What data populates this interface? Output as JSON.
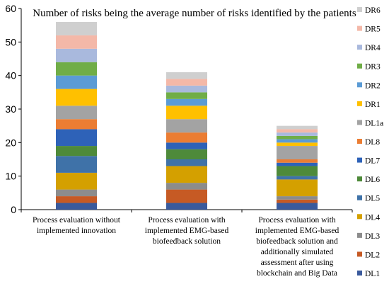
{
  "chart_data": {
    "type": "bar",
    "stacked": true,
    "title": "Number of risks being the average number of risks identified by the patients",
    "xlabel": "",
    "ylabel": "",
    "ylim": [
      0,
      60
    ],
    "yticks": [
      0,
      10,
      20,
      30,
      40,
      50,
      60
    ],
    "grid": false,
    "legend_position": "right",
    "categories": [
      [
        "Process evaluation without",
        "implemented innovation"
      ],
      [
        "Process evaluation with",
        "implemented EMG-based",
        "biofeedback solution"
      ],
      [
        "Process evaluation with",
        "implemented EMG-based",
        "biofeedback solution and",
        "additionally simulated",
        "assessment after using",
        "blockchain and Big Data"
      ]
    ],
    "series": [
      {
        "name": "DL1",
        "color": "#3a5a9c",
        "values": [
          2,
          2,
          2
        ]
      },
      {
        "name": "DL2",
        "color": "#c65a24",
        "values": [
          2,
          4,
          1
        ]
      },
      {
        "name": "DL3",
        "color": "#8c8c8c",
        "values": [
          2,
          2,
          1
        ]
      },
      {
        "name": "DL4",
        "color": "#d4a000",
        "values": [
          5,
          5,
          5
        ]
      },
      {
        "name": "DL5",
        "color": "#3f72a8",
        "values": [
          5,
          2,
          1
        ]
      },
      {
        "name": "DL6",
        "color": "#4e8a3a",
        "values": [
          3,
          3,
          3
        ]
      },
      {
        "name": "DL7",
        "color": "#2e62b8",
        "values": [
          5,
          2,
          1
        ]
      },
      {
        "name": "DL8",
        "color": "#eb7d33",
        "values": [
          3,
          3,
          1
        ]
      },
      {
        "name": "DL1a",
        "color": "#a3a3a3",
        "values": [
          4,
          4,
          4
        ]
      },
      {
        "name": "DR1",
        "color": "#ffc000",
        "values": [
          5,
          4,
          1
        ]
      },
      {
        "name": "DR2",
        "color": "#5b9bd5",
        "values": [
          4,
          2,
          1
        ]
      },
      {
        "name": "DR3",
        "color": "#70ad47",
        "values": [
          4,
          2,
          1
        ]
      },
      {
        "name": "DR4",
        "color": "#a9b9dd",
        "values": [
          4,
          2,
          1
        ]
      },
      {
        "name": "DR5",
        "color": "#f4b8a8",
        "values": [
          4,
          2,
          1
        ]
      },
      {
        "name": "DR6",
        "color": "#cfcfcf",
        "values": [
          4,
          2,
          1
        ]
      }
    ]
  }
}
